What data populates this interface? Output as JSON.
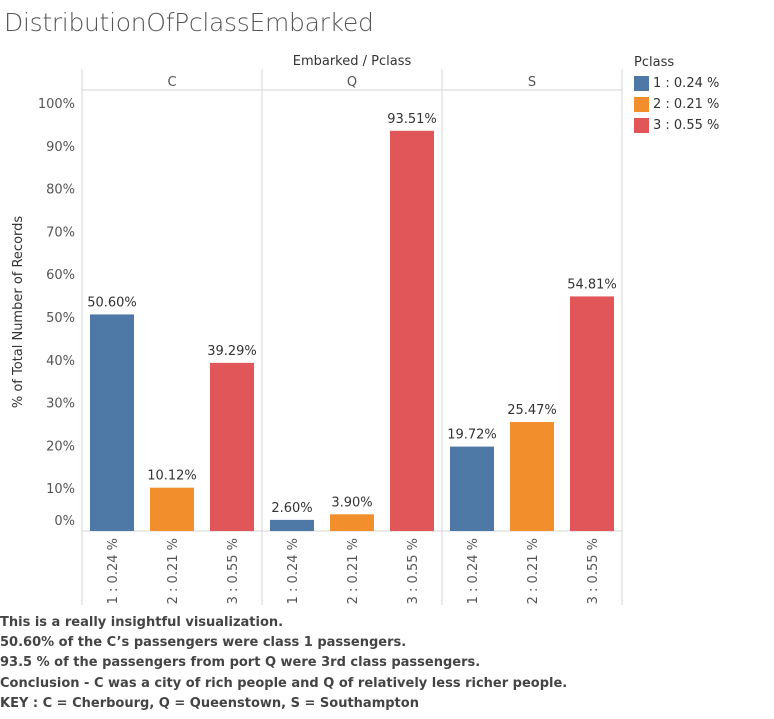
{
  "title": "DistributionOfPclassEmbarked",
  "chart_data": {
    "type": "bar",
    "column_header": "Embarked / Pclass",
    "ylabel": "% of Total Number of Records",
    "ylim": [
      0,
      100
    ],
    "y_ticks": [
      0,
      10,
      20,
      30,
      40,
      50,
      60,
      70,
      80,
      90,
      100
    ],
    "y_tick_labels": [
      "0%",
      "10%",
      "20%",
      "30%",
      "40%",
      "50%",
      "60%",
      "70%",
      "80%",
      "90%",
      "100%"
    ],
    "categories": [
      "1 : 0.24 %",
      "2 : 0.21 %",
      "3 : 0.55 %"
    ],
    "colors": [
      "#4e79a7",
      "#f28e2b",
      "#e15759"
    ],
    "panels": [
      {
        "name": "C",
        "values": [
          50.6,
          10.12,
          39.29
        ],
        "labels": [
          "50.60%",
          "10.12%",
          "39.29%"
        ]
      },
      {
        "name": "Q",
        "values": [
          2.6,
          3.9,
          93.51
        ],
        "labels": [
          "2.60%",
          "3.90%",
          "93.51%"
        ]
      },
      {
        "name": "S",
        "values": [
          19.72,
          25.47,
          54.81
        ],
        "labels": [
          "19.72%",
          "25.47%",
          "54.81%"
        ]
      }
    ],
    "grid": false,
    "legend": {
      "title": "Pclass",
      "placement": "right",
      "entries": [
        "1 : 0.24 %",
        "2 : 0.21 %",
        "3 : 0.55 %"
      ]
    }
  },
  "notes": [
    "This is a really insightful visualization.",
    "50.60% of the C’s passengers were class 1 passengers.",
    "93.5 % of the passengers from port Q were 3rd class passengers.",
    "Conclusion - C was a city of rich people and Q of relatively less richer people.",
    "KEY : C = Cherbourg, Q = Queenstown, S = Southampton"
  ]
}
